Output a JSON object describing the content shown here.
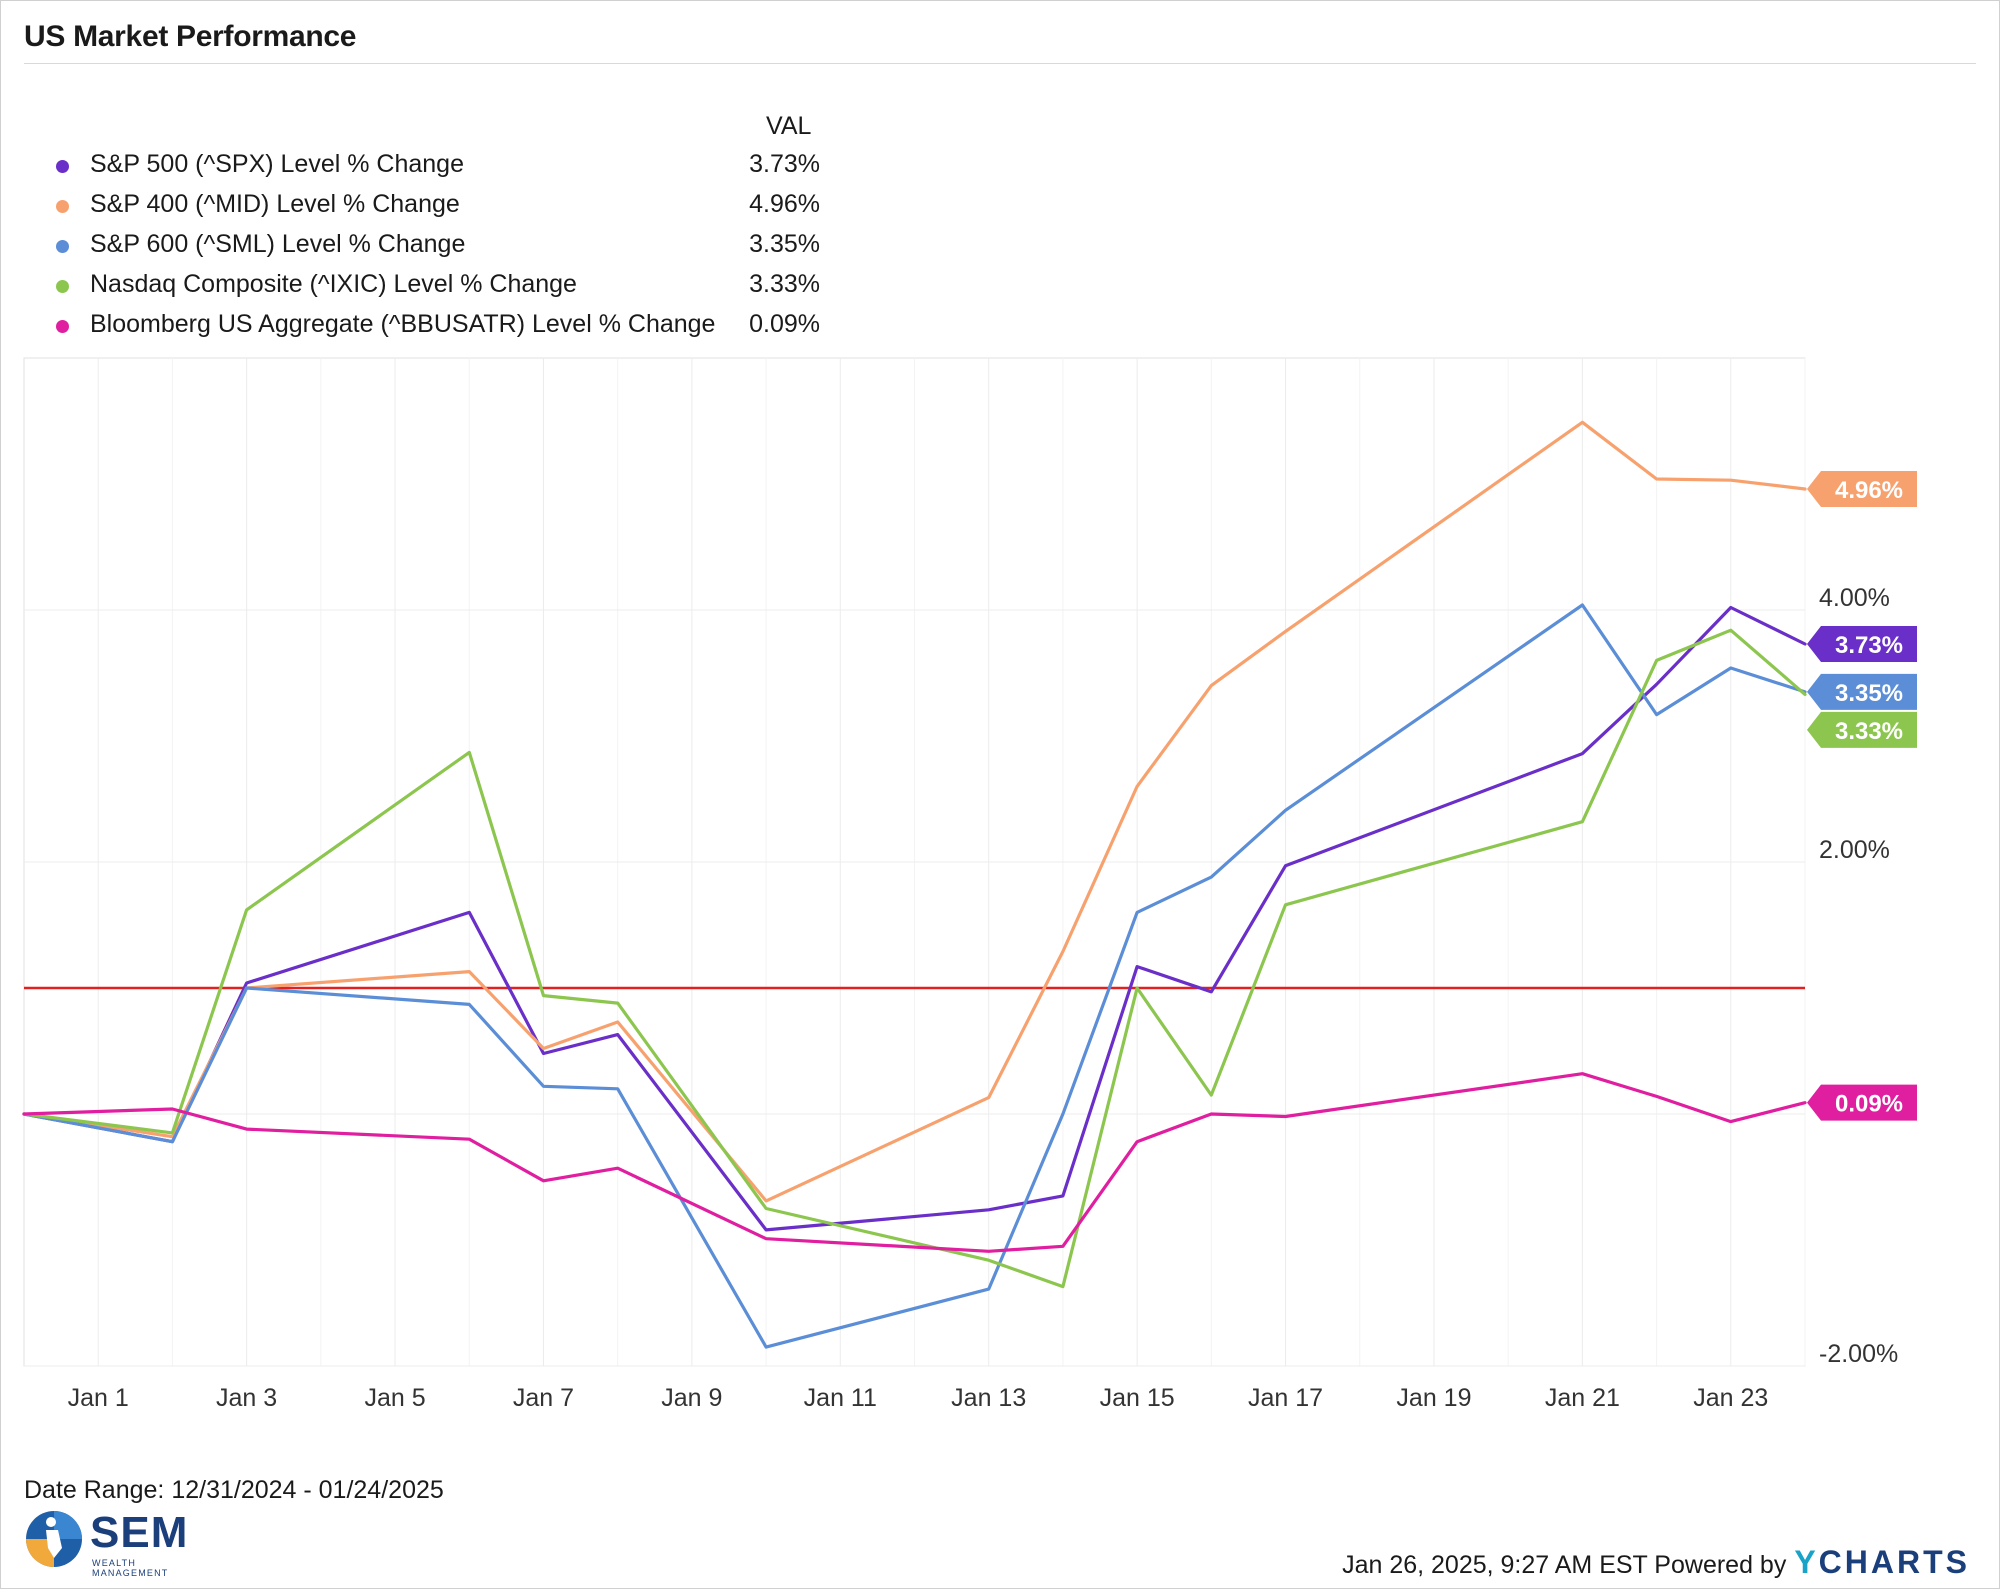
{
  "title": "US Market Performance",
  "legend": {
    "header": "VAL",
    "items": [
      {
        "name": "S&P 500 (^SPX) Level % Change",
        "value": "3.73%",
        "color": "#6a2fc8"
      },
      {
        "name": "S&P 400 (^MID) Level % Change",
        "value": "4.96%",
        "color": "#f7a26e"
      },
      {
        "name": "S&P 600 (^SML) Level % Change",
        "value": "3.35%",
        "color": "#5b8ed6"
      },
      {
        "name": "Nasdaq Composite (^IXIC) Level % Change",
        "value": "3.33%",
        "color": "#8cc64f"
      },
      {
        "name": "Bloomberg US Aggregate (^BBUSATR) Level % Change",
        "value": "0.09%",
        "color": "#e01fa0"
      }
    ]
  },
  "chart_data": {
    "type": "line",
    "title": "US Market Performance",
    "xlabel": "",
    "ylabel": "",
    "x": [
      "2024-12-31",
      "2025-01-02",
      "2025-01-03",
      "2025-01-06",
      "2025-01-07",
      "2025-01-08",
      "2025-01-10",
      "2025-01-13",
      "2025-01-14",
      "2025-01-15",
      "2025-01-16",
      "2025-01-17",
      "2025-01-21",
      "2025-01-22",
      "2025-01-23",
      "2025-01-24"
    ],
    "x_index": [
      0,
      2,
      3,
      6,
      7,
      8,
      10,
      13,
      14,
      15,
      16,
      17,
      21,
      22,
      23,
      24
    ],
    "xticks": [
      {
        "day": 1,
        "label": "Jan 1"
      },
      {
        "day": 3,
        "label": "Jan 3"
      },
      {
        "day": 5,
        "label": "Jan 5"
      },
      {
        "day": 7,
        "label": "Jan 7"
      },
      {
        "day": 9,
        "label": "Jan 9"
      },
      {
        "day": 11,
        "label": "Jan 11"
      },
      {
        "day": 13,
        "label": "Jan 13"
      },
      {
        "day": 15,
        "label": "Jan 15"
      },
      {
        "day": 17,
        "label": "Jan 17"
      },
      {
        "day": 19,
        "label": "Jan 19"
      },
      {
        "day": 21,
        "label": "Jan 21"
      },
      {
        "day": 23,
        "label": "Jan 23"
      }
    ],
    "yticks": [
      {
        "value": 4,
        "label": "4.00%"
      },
      {
        "value": 2,
        "label": "2.00%"
      },
      {
        "value": -2,
        "label": "-2.00%"
      }
    ],
    "ylim": [
      -2.0,
      6.0
    ],
    "reference_line": {
      "value": 1.0,
      "color": "#e32020"
    },
    "grid": true,
    "series": [
      {
        "name": "S&P 500 (^SPX) Level % Change",
        "color": "#6a2fc8",
        "label": "3.73%",
        "values": [
          0.0,
          -0.22,
          1.04,
          1.6,
          0.48,
          0.63,
          -0.92,
          -0.76,
          -0.65,
          1.17,
          0.97,
          1.97,
          2.86,
          3.41,
          4.02,
          3.73
        ]
      },
      {
        "name": "S&P 400 (^MID) Level % Change",
        "color": "#f7a26e",
        "label": "4.96%",
        "values": [
          0.0,
          -0.18,
          1.0,
          1.13,
          0.52,
          0.73,
          -0.69,
          0.13,
          1.29,
          2.6,
          3.4,
          3.83,
          5.49,
          5.04,
          5.03,
          4.96
        ]
      },
      {
        "name": "S&P 600 (^SML) Level % Change",
        "color": "#5b8ed6",
        "label": "3.35%",
        "values": [
          0.0,
          -0.22,
          1.0,
          0.87,
          0.22,
          0.2,
          -1.85,
          -1.39,
          0.0,
          1.6,
          1.88,
          2.41,
          4.04,
          3.17,
          3.54,
          3.35
        ]
      },
      {
        "name": "Nasdaq Composite (^IXIC) Level % Change",
        "color": "#8cc64f",
        "label": "3.33%",
        "values": [
          0.0,
          -0.15,
          1.62,
          2.87,
          0.94,
          0.88,
          -0.75,
          -1.16,
          -1.37,
          1.0,
          0.15,
          1.66,
          2.32,
          3.6,
          3.84,
          3.33
        ]
      },
      {
        "name": "Bloomberg US Aggregate (^BBUSATR) Level % Change",
        "color": "#e01fa0",
        "label": "0.09%",
        "values": [
          0.0,
          0.04,
          -0.12,
          -0.2,
          -0.53,
          -0.43,
          -0.99,
          -1.09,
          -1.05,
          -0.22,
          0.0,
          -0.02,
          0.32,
          0.14,
          -0.06,
          0.09
        ]
      }
    ]
  },
  "footer": {
    "date_range": "Date Range: 12/31/2024 - 01/24/2025",
    "logo_text": "SEM",
    "logo_sub": "WEALTH MANAGEMENT",
    "timestamp": "Jan 26, 2025, 9:27 AM EST Powered by",
    "brand_initial": "Y",
    "brand_rest": "CHARTS"
  }
}
